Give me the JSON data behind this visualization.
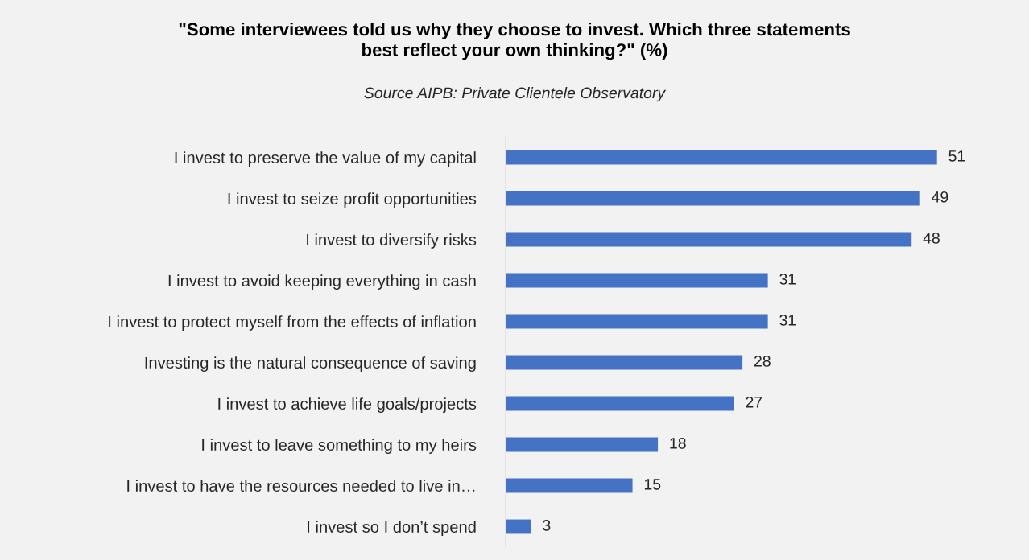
{
  "chart_data": {
    "type": "bar",
    "orientation": "horizontal",
    "title": "\"Some interviewees told us why they choose to invest. Which three statements\nbest reflect your own thinking?\" (%)",
    "subtitle": "Source AIPB: Private Clientele Observatory",
    "categories": [
      "I invest to preserve the value of my capital",
      "I invest to seize profit opportunities",
      "I invest to diversify risks",
      "I invest to avoid keeping everything in cash",
      "I invest to protect myself from the effects of inflation",
      "Investing is the natural consequence of saving",
      "I invest to achieve life goals/projects",
      "I invest to leave something to my heirs",
      "I invest to have the resources needed to live in…",
      "I invest so I don’t spend"
    ],
    "values": [
      51,
      49,
      48,
      31,
      31,
      28,
      27,
      18,
      15,
      3
    ],
    "color": "#4472c4",
    "data_labels": true,
    "grid": false,
    "legend": false,
    "tick_labels": "y"
  }
}
